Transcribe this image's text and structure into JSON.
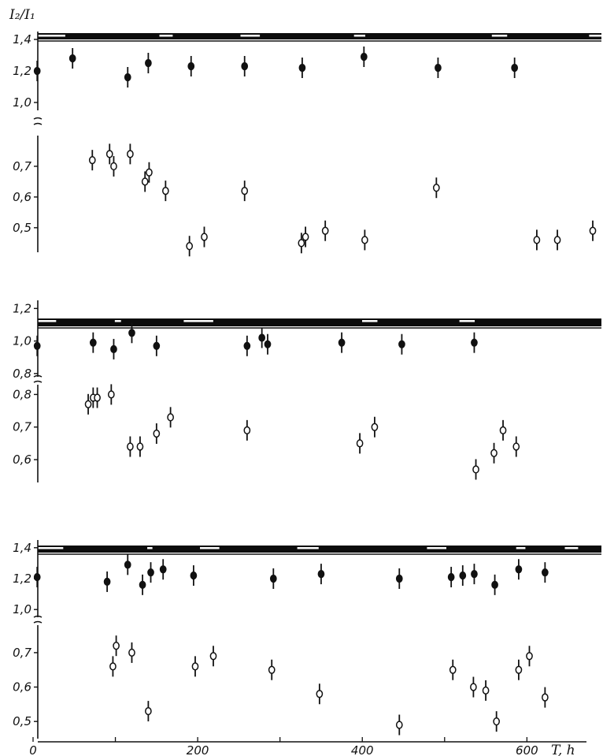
{
  "chart_data": {
    "type": "scatter",
    "ylabel": "I₂/I₁",
    "xlabel": "T, h",
    "x_ticks": [
      "0",
      "200",
      "400",
      "600"
    ],
    "xlim": [
      0,
      680
    ],
    "panels": [
      {
        "upper": {
          "ylim": [
            0.95,
            1.45
          ],
          "ticks": [
            {
              "v": 1.4,
              "label": "1,4"
            },
            {
              "v": 1.2,
              "label": "1,2"
            },
            {
              "v": 1.0,
              "label": "1,0"
            }
          ],
          "series": {
            "marker": "filled",
            "points": [
              {
                "x": 5,
                "y": 1.2
              },
              {
                "x": 48,
                "y": 1.28
              },
              {
                "x": 115,
                "y": 1.16
              },
              {
                "x": 140,
                "y": 1.25
              },
              {
                "x": 192,
                "y": 1.23
              },
              {
                "x": 257,
                "y": 1.23
              },
              {
                "x": 327,
                "y": 1.22
              },
              {
                "x": 402,
                "y": 1.29
              },
              {
                "x": 492,
                "y": 1.22
              },
              {
                "x": 585,
                "y": 1.22
              }
            ]
          }
        },
        "lower": {
          "ylim": [
            0.42,
            0.8
          ],
          "ticks": [
            {
              "v": 0.7,
              "label": "0,7"
            },
            {
              "v": 0.6,
              "label": "0,6"
            },
            {
              "v": 0.5,
              "label": "0,5"
            }
          ],
          "series": {
            "marker": "open",
            "points": [
              {
                "x": 72,
                "y": 0.72
              },
              {
                "x": 93,
                "y": 0.74
              },
              {
                "x": 98,
                "y": 0.7
              },
              {
                "x": 118,
                "y": 0.74
              },
              {
                "x": 136,
                "y": 0.65
              },
              {
                "x": 141,
                "y": 0.68
              },
              {
                "x": 161,
                "y": 0.62
              },
              {
                "x": 190,
                "y": 0.44
              },
              {
                "x": 208,
                "y": 0.47
              },
              {
                "x": 257,
                "y": 0.62
              },
              {
                "x": 326,
                "y": 0.45
              },
              {
                "x": 331,
                "y": 0.47
              },
              {
                "x": 355,
                "y": 0.49
              },
              {
                "x": 403,
                "y": 0.46
              },
              {
                "x": 490,
                "y": 0.63
              },
              {
                "x": 612,
                "y": 0.46
              },
              {
                "x": 637,
                "y": 0.46
              },
              {
                "x": 680,
                "y": 0.49
              }
            ]
          }
        }
      },
      {
        "upper": {
          "ylim": [
            0.78,
            1.25
          ],
          "ticks": [
            {
              "v": 1.2,
              "label": "1,2"
            },
            {
              "v": 1.0,
              "label": "1,0"
            },
            {
              "v": 0.8,
              "label": "0,8"
            }
          ],
          "series": {
            "marker": "filled",
            "points": [
              {
                "x": 5,
                "y": 0.97
              },
              {
                "x": 73,
                "y": 0.99
              },
              {
                "x": 98,
                "y": 0.95
              },
              {
                "x": 120,
                "y": 1.05
              },
              {
                "x": 150,
                "y": 0.97
              },
              {
                "x": 260,
                "y": 0.97
              },
              {
                "x": 278,
                "y": 1.02
              },
              {
                "x": 285,
                "y": 0.98
              },
              {
                "x": 375,
                "y": 0.99
              },
              {
                "x": 448,
                "y": 0.98
              },
              {
                "x": 536,
                "y": 0.99
              }
            ]
          }
        },
        "lower": {
          "ylim": [
            0.53,
            0.83
          ],
          "ticks": [
            {
              "v": 0.8,
              "label": "0,8"
            },
            {
              "v": 0.7,
              "label": "0,7"
            },
            {
              "v": 0.6,
              "label": "0,6"
            }
          ],
          "series": {
            "marker": "open",
            "points": [
              {
                "x": 67,
                "y": 0.77
              },
              {
                "x": 73,
                "y": 0.79
              },
              {
                "x": 78,
                "y": 0.79
              },
              {
                "x": 95,
                "y": 0.8
              },
              {
                "x": 118,
                "y": 0.64
              },
              {
                "x": 130,
                "y": 0.64
              },
              {
                "x": 150,
                "y": 0.68
              },
              {
                "x": 167,
                "y": 0.73
              },
              {
                "x": 260,
                "y": 0.69
              },
              {
                "x": 397,
                "y": 0.65
              },
              {
                "x": 415,
                "y": 0.7
              },
              {
                "x": 538,
                "y": 0.57
              },
              {
                "x": 560,
                "y": 0.62
              },
              {
                "x": 571,
                "y": 0.69
              },
              {
                "x": 587,
                "y": 0.64
              }
            ]
          }
        }
      },
      {
        "upper": {
          "ylim": [
            0.95,
            1.45
          ],
          "ticks": [
            {
              "v": 1.4,
              "label": "1,4"
            },
            {
              "v": 1.2,
              "label": "1,2"
            },
            {
              "v": 1.0,
              "label": "1,0"
            }
          ],
          "series": {
            "marker": "filled",
            "points": [
              {
                "x": 5,
                "y": 1.21
              },
              {
                "x": 90,
                "y": 1.18
              },
              {
                "x": 115,
                "y": 1.29
              },
              {
                "x": 133,
                "y": 1.16
              },
              {
                "x": 143,
                "y": 1.24
              },
              {
                "x": 158,
                "y": 1.26
              },
              {
                "x": 195,
                "y": 1.22
              },
              {
                "x": 292,
                "y": 1.2
              },
              {
                "x": 350,
                "y": 1.23
              },
              {
                "x": 445,
                "y": 1.2
              },
              {
                "x": 508,
                "y": 1.21
              },
              {
                "x": 522,
                "y": 1.22
              },
              {
                "x": 536,
                "y": 1.23
              },
              {
                "x": 561,
                "y": 1.16
              },
              {
                "x": 590,
                "y": 1.26
              },
              {
                "x": 622,
                "y": 1.24
              }
            ]
          }
        },
        "lower": {
          "ylim": [
            0.45,
            0.78
          ],
          "ticks": [
            {
              "v": 0.7,
              "label": "0,7"
            },
            {
              "v": 0.6,
              "label": "0,6"
            },
            {
              "v": 0.5,
              "label": "0,5"
            }
          ],
          "series": {
            "marker": "open",
            "points": [
              {
                "x": 97,
                "y": 0.66
              },
              {
                "x": 101,
                "y": 0.72
              },
              {
                "x": 120,
                "y": 0.7
              },
              {
                "x": 140,
                "y": 0.53
              },
              {
                "x": 197,
                "y": 0.66
              },
              {
                "x": 219,
                "y": 0.69
              },
              {
                "x": 290,
                "y": 0.65
              },
              {
                "x": 348,
                "y": 0.58
              },
              {
                "x": 445,
                "y": 0.49
              },
              {
                "x": 510,
                "y": 0.65
              },
              {
                "x": 535,
                "y": 0.6
              },
              {
                "x": 550,
                "y": 0.59
              },
              {
                "x": 563,
                "y": 0.5
              },
              {
                "x": 590,
                "y": 0.65
              },
              {
                "x": 603,
                "y": 0.69
              },
              {
                "x": 622,
                "y": 0.57
              }
            ]
          }
        }
      }
    ]
  }
}
